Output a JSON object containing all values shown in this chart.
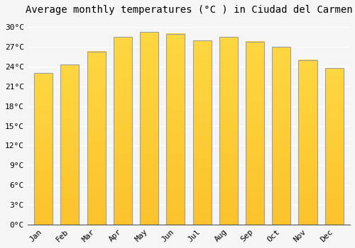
{
  "title": "Average monthly temperatures (°C ) in Ciudad del Carmen",
  "months": [
    "Jan",
    "Feb",
    "Mar",
    "Apr",
    "May",
    "Jun",
    "Jul",
    "Aug",
    "Sep",
    "Oct",
    "Nov",
    "Dec"
  ],
  "values": [
    23.0,
    24.3,
    26.3,
    28.5,
    29.3,
    29.0,
    28.0,
    28.5,
    27.8,
    27.0,
    25.0,
    23.8
  ],
  "bar_color_main": "#FFA726",
  "bar_color_light": "#FFD54F",
  "bar_edge_color": "#9E9E9E",
  "ylim": [
    0,
    31
  ],
  "yticks": [
    0,
    3,
    6,
    9,
    12,
    15,
    18,
    21,
    24,
    27,
    30
  ],
  "ytick_labels": [
    "0°C",
    "3°C",
    "6°C",
    "9°C",
    "12°C",
    "15°C",
    "18°C",
    "21°C",
    "24°C",
    "27°C",
    "30°C"
  ],
  "bg_color": "#f5f5f5",
  "grid_color": "#ffffff",
  "title_fontsize": 10,
  "tick_fontsize": 8,
  "bar_width": 0.7
}
